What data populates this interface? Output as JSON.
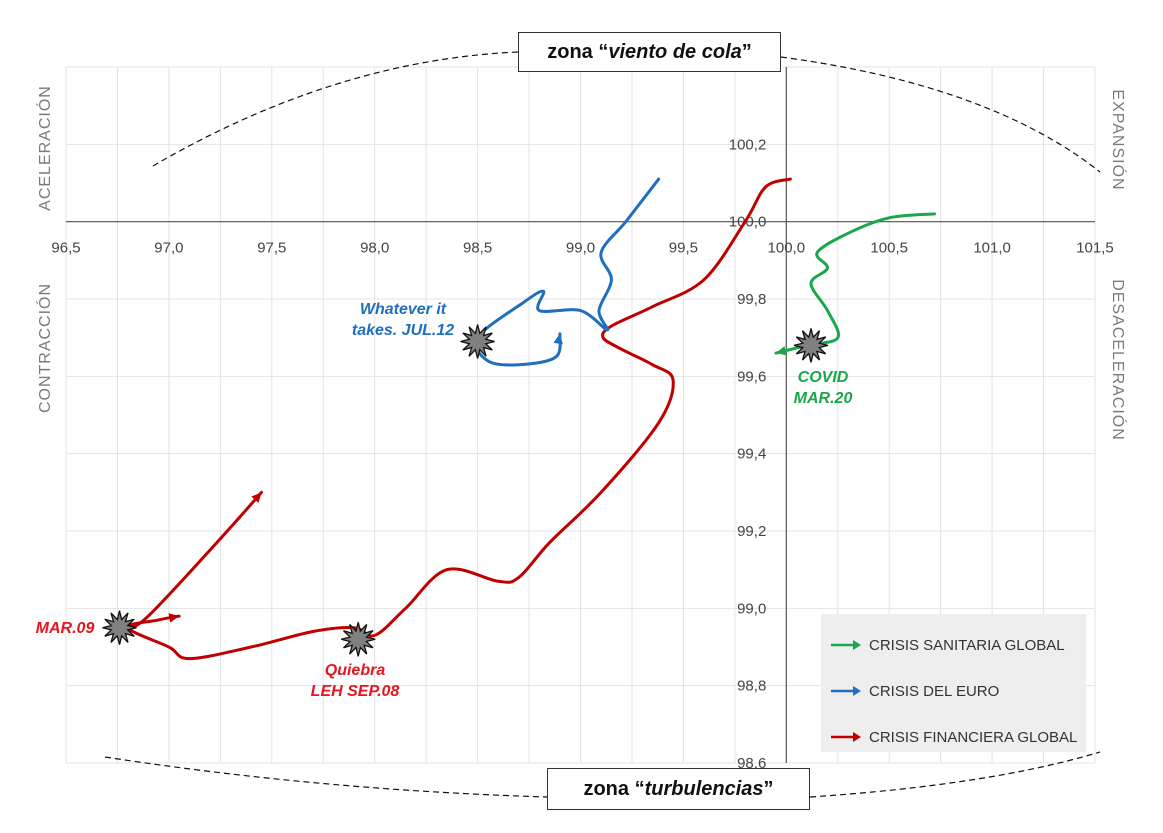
{
  "zones": {
    "top": {
      "prefix": "zona “",
      "name": "viento de cola",
      "suffix": "”"
    },
    "bottom": {
      "prefix": "zona “",
      "name": "turbulencias",
      "suffix": "”"
    }
  },
  "quadrant_labels": {
    "top_left": "ACELERACIÓN",
    "bottom_left": "CONTRACCIÓN",
    "top_right": "EXPANSIÓN",
    "bottom_right": "DESACELERACIÓN"
  },
  "annotations": {
    "mar09": "MAR.09",
    "lehman_line1": "Quiebra",
    "lehman_line2": "LEH SEP.08",
    "jul12_line1": "Whatever it",
    "jul12_line2": "takes. JUL.12",
    "covid_line1": "COVID",
    "covid_line2": "MAR.20"
  },
  "legend": [
    {
      "label": "CRISIS SANITARIA GLOBAL",
      "color": "#1aa64b"
    },
    {
      "label": "CRISIS DEL EURO",
      "color": "#1f6fbf"
    },
    {
      "label": "CRISIS FINANCIERA GLOBAL",
      "color": "#c00000"
    }
  ],
  "chart_data": {
    "type": "line",
    "xlim": [
      96.5,
      101.5
    ],
    "ylim": [
      98.6,
      100.4
    ],
    "x_ticks": [
      96.5,
      97.0,
      97.5,
      98.0,
      98.5,
      99.0,
      99.5,
      100.0,
      100.5,
      101.0,
      101.5
    ],
    "x_tick_labels": [
      "96,5",
      "97,0",
      "97,5",
      "98,0",
      "98,5",
      "99,0",
      "99,5",
      "100,0",
      "100,5",
      "101,0",
      "101,5"
    ],
    "y_ticks": [
      98.6,
      98.8,
      99.0,
      99.2,
      99.4,
      99.6,
      99.8,
      100.0,
      100.2
    ],
    "y_tick_labels": [
      "98,6",
      "98,8",
      "99,0",
      "99,2",
      "99,4",
      "99,6",
      "99,8",
      "100,0",
      "100,2"
    ],
    "axis_cross": {
      "x": 100.0,
      "y": 100.0
    },
    "grid": true,
    "legend_position": "bottom-right",
    "series": [
      {
        "name": "CRISIS FINANCIERA GLOBAL",
        "color": "#c00000",
        "points": [
          [
            100.02,
            100.11
          ],
          [
            99.9,
            100.09
          ],
          [
            99.8,
            100.0
          ],
          [
            99.6,
            99.85
          ],
          [
            99.35,
            99.78
          ],
          [
            99.15,
            99.73
          ],
          [
            99.11,
            99.7
          ],
          [
            99.2,
            99.67
          ],
          [
            99.35,
            99.63
          ],
          [
            99.45,
            99.59
          ],
          [
            99.38,
            99.48
          ],
          [
            99.1,
            99.3
          ],
          [
            98.85,
            99.17
          ],
          [
            98.7,
            99.08
          ],
          [
            98.6,
            99.07
          ],
          [
            98.35,
            99.1
          ],
          [
            98.15,
            99.0
          ],
          [
            98.0,
            98.93
          ],
          [
            97.9,
            98.95
          ],
          [
            97.7,
            98.94
          ],
          [
            97.4,
            98.9
          ],
          [
            97.1,
            98.87
          ],
          [
            97.0,
            98.9
          ],
          [
            96.8,
            98.95
          ],
          [
            96.95,
            98.97
          ],
          [
            97.05,
            98.98
          ]
        ],
        "arrow": {
          "from": [
            96.8,
            98.95
          ],
          "points": [
            [
              96.9,
              98.98
            ],
            [
              97.25,
              99.18
            ],
            [
              97.45,
              99.3
            ]
          ]
        }
      },
      {
        "name": "CRISIS DEL EURO",
        "color": "#1f6fbf",
        "points": [
          [
            99.38,
            100.11
          ],
          [
            99.22,
            100.0
          ],
          [
            99.1,
            99.92
          ],
          [
            99.15,
            99.85
          ],
          [
            99.09,
            99.77
          ],
          [
            99.13,
            99.72
          ],
          [
            99.0,
            99.77
          ],
          [
            98.8,
            99.77
          ],
          [
            98.82,
            99.82
          ],
          [
            98.72,
            99.79
          ],
          [
            98.5,
            99.7
          ],
          [
            98.55,
            99.64
          ],
          [
            98.7,
            99.63
          ],
          [
            98.88,
            99.65
          ],
          [
            98.9,
            99.71
          ]
        ]
      },
      {
        "name": "CRISIS SANITARIA GLOBAL",
        "color": "#1aa64b",
        "points": [
          [
            100.72,
            100.02
          ],
          [
            100.5,
            100.01
          ],
          [
            100.3,
            99.97
          ],
          [
            100.15,
            99.92
          ],
          [
            100.2,
            99.88
          ],
          [
            100.12,
            99.84
          ],
          [
            100.2,
            99.77
          ],
          [
            100.25,
            99.7
          ],
          [
            100.1,
            99.68
          ],
          [
            99.95,
            99.66
          ]
        ]
      }
    ],
    "events": [
      {
        "name": "Quiebra LEH SEP.08",
        "x": 97.92,
        "y": 98.92
      },
      {
        "name": "MAR.09",
        "x": 96.76,
        "y": 98.95
      },
      {
        "name": "Whatever it takes. JUL.12",
        "x": 98.5,
        "y": 99.69
      },
      {
        "name": "COVID MAR.20",
        "x": 100.12,
        "y": 99.68
      }
    ]
  }
}
